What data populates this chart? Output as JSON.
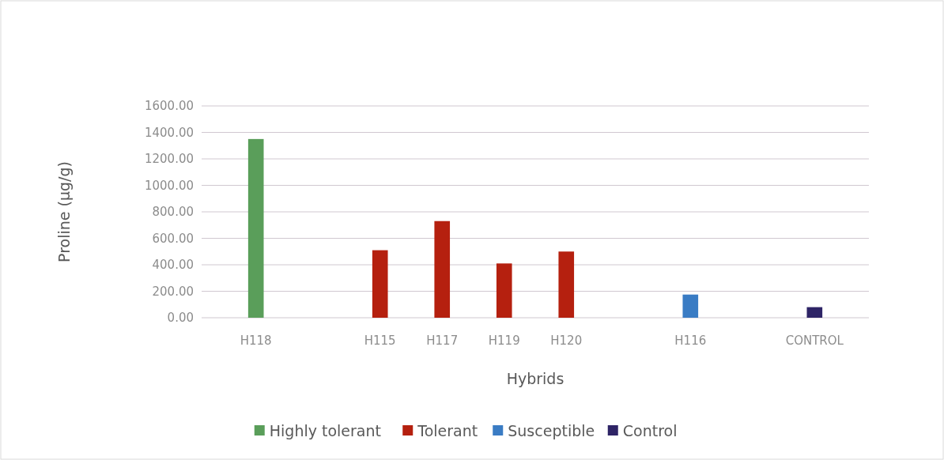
{
  "chart_data": {
    "type": "bar",
    "xlabel": "Hybrids",
    "ylabel": "Proline (µg/g)",
    "categories": [
      "H118",
      null,
      "H115",
      "H117",
      "H119",
      "H120",
      null,
      "H116",
      null,
      "CONTROL"
    ],
    "series": [
      {
        "name": "Highly tolerant",
        "color": "#5a9e5a",
        "values": [
          1350,
          null,
          null,
          null,
          null,
          null,
          null,
          null,
          null,
          null
        ]
      },
      {
        "name": "Tolerant",
        "color": "#b5200f",
        "values": [
          null,
          null,
          510,
          730,
          410,
          500,
          null,
          null,
          null,
          null
        ]
      },
      {
        "name": "Susceptible",
        "color": "#3a7cc4",
        "values": [
          null,
          null,
          null,
          null,
          null,
          null,
          null,
          175,
          null,
          null
        ]
      },
      {
        "name": "Control",
        "color": "#2e2466",
        "values": [
          null,
          null,
          null,
          null,
          null,
          null,
          null,
          null,
          null,
          80
        ]
      }
    ],
    "ylim": [
      0,
      1600
    ],
    "yticks": [
      {
        "value": 0,
        "label": "0.00"
      },
      {
        "value": 200,
        "label": "200.00"
      },
      {
        "value": 400,
        "label": "400.00"
      },
      {
        "value": 600,
        "label": "600.00"
      },
      {
        "value": 800,
        "label": "800.00"
      },
      {
        "value": 1000,
        "label": "1000.00"
      },
      {
        "value": 1200,
        "label": "1200.00"
      },
      {
        "value": 1400,
        "label": "1400.00"
      },
      {
        "value": 1600,
        "label": "1600.00"
      }
    ],
    "grid": "y",
    "legend": "bottom"
  }
}
